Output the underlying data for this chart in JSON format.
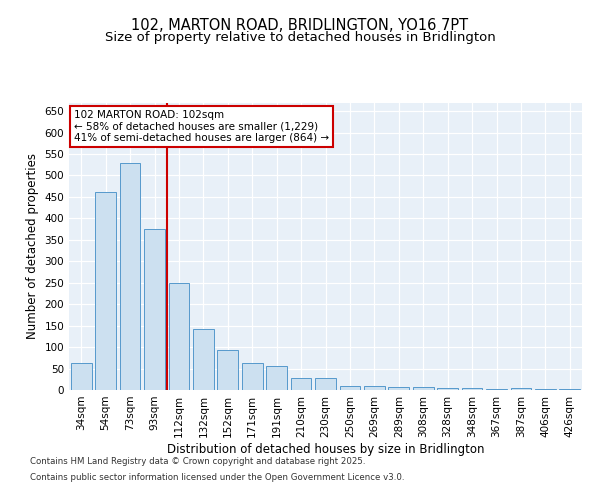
{
  "title1": "102, MARTON ROAD, BRIDLINGTON, YO16 7PT",
  "title2": "Size of property relative to detached houses in Bridlington",
  "xlabel": "Distribution of detached houses by size in Bridlington",
  "ylabel": "Number of detached properties",
  "categories": [
    "34sqm",
    "54sqm",
    "73sqm",
    "93sqm",
    "112sqm",
    "132sqm",
    "152sqm",
    "171sqm",
    "191sqm",
    "210sqm",
    "230sqm",
    "250sqm",
    "269sqm",
    "289sqm",
    "308sqm",
    "328sqm",
    "348sqm",
    "367sqm",
    "387sqm",
    "406sqm",
    "426sqm"
  ],
  "values": [
    62,
    462,
    530,
    375,
    250,
    143,
    93,
    63,
    57,
    27,
    27,
    10,
    10,
    8,
    6,
    5,
    4,
    3,
    5,
    3,
    3
  ],
  "bar_color": "#cce0f0",
  "bar_edge_color": "#5599cc",
  "vline_x": 3.5,
  "vline_color": "#cc0000",
  "annotation_line1": "102 MARTON ROAD: 102sqm",
  "annotation_line2": "← 58% of detached houses are smaller (1,229)",
  "annotation_line3": "41% of semi-detached houses are larger (864) →",
  "annotation_box_color": "#ffffff",
  "annotation_box_edge": "#cc0000",
  "ylim": [
    0,
    670
  ],
  "yticks": [
    0,
    50,
    100,
    150,
    200,
    250,
    300,
    350,
    400,
    450,
    500,
    550,
    600,
    650
  ],
  "footer1": "Contains HM Land Registry data © Crown copyright and database right 2025.",
  "footer2": "Contains public sector information licensed under the Open Government Licence v3.0.",
  "bg_color": "#ffffff",
  "plot_bg_color": "#e8f0f8",
  "title1_fontsize": 10.5,
  "title2_fontsize": 9.5,
  "tick_fontsize": 7.5,
  "label_fontsize": 8.5,
  "annotation_fontsize": 7.5,
  "footer_fontsize": 6.2
}
